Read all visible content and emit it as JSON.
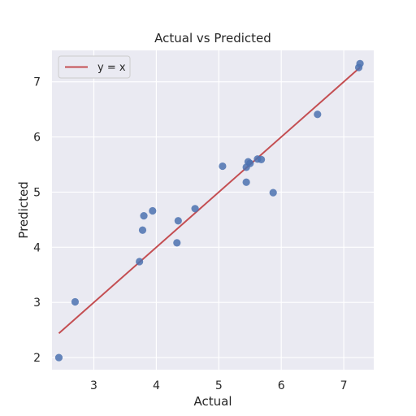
{
  "chart_data": {
    "type": "scatter",
    "title": "Actual vs Predicted",
    "xlabel": "Actual",
    "ylabel": "Predicted",
    "xlim": [
      2.33,
      7.48
    ],
    "ylim": [
      1.78,
      7.57
    ],
    "xticks": [
      3,
      4,
      5,
      6,
      7
    ],
    "yticks": [
      2,
      3,
      4,
      5,
      6,
      7
    ],
    "grid": true,
    "legend": {
      "placement": "top-left",
      "entries": [
        "y = x"
      ]
    },
    "points": [
      {
        "x": 2.44,
        "y": 2.0
      },
      {
        "x": 2.7,
        "y": 3.01
      },
      {
        "x": 3.73,
        "y": 3.74
      },
      {
        "x": 3.78,
        "y": 4.31
      },
      {
        "x": 3.8,
        "y": 4.57
      },
      {
        "x": 3.94,
        "y": 4.66
      },
      {
        "x": 4.33,
        "y": 4.08
      },
      {
        "x": 4.35,
        "y": 4.48
      },
      {
        "x": 4.62,
        "y": 4.7
      },
      {
        "x": 5.06,
        "y": 5.47
      },
      {
        "x": 5.44,
        "y": 5.18
      },
      {
        "x": 5.44,
        "y": 5.45
      },
      {
        "x": 5.47,
        "y": 5.55
      },
      {
        "x": 5.5,
        "y": 5.52
      },
      {
        "x": 5.62,
        "y": 5.6
      },
      {
        "x": 5.68,
        "y": 5.59
      },
      {
        "x": 5.87,
        "y": 4.99
      },
      {
        "x": 6.58,
        "y": 6.41
      },
      {
        "x": 7.24,
        "y": 7.26
      },
      {
        "x": 7.26,
        "y": 7.33
      }
    ],
    "reference_line": {
      "name": "y = x",
      "x": [
        2.44,
        7.26
      ],
      "y": [
        2.44,
        7.26
      ]
    },
    "colors": {
      "background": "#eaeaf2",
      "grid": "#ffffff",
      "points": "#4c72b0",
      "line": "#c44e52"
    }
  }
}
